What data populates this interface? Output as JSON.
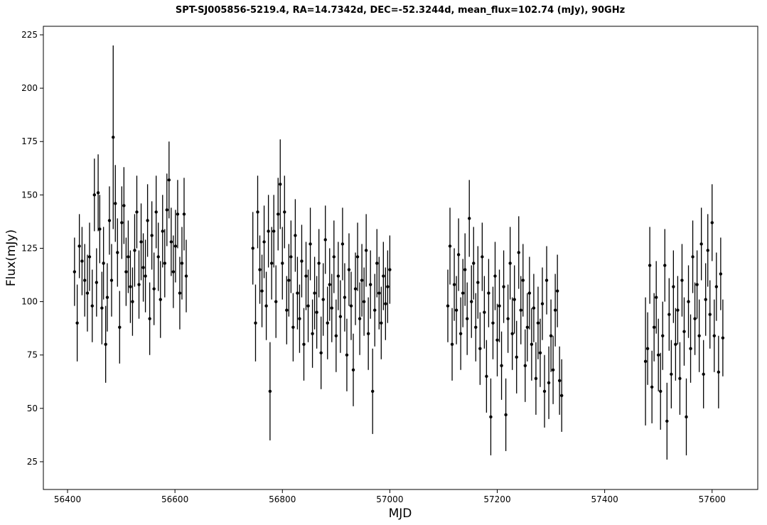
{
  "chart_data": {
    "type": "scatter",
    "title": "SPT-SJ005856-5219.4, RA=14.7342d, DEC=-52.3244d, mean_flux=102.74 (mJy), 90GHz",
    "xlabel": "MJD",
    "ylabel": "Flux(mJy)",
    "xlim": [
      56355,
      57685
    ],
    "ylim": [
      12,
      229
    ],
    "xticks": [
      "56400",
      "56600",
      "56800",
      "57000",
      "57200",
      "57400",
      "57600"
    ],
    "yticks": [
      "25",
      "50",
      "75",
      "100",
      "125",
      "150",
      "175",
      "200",
      "225"
    ],
    "grid": false,
    "error_bars": true,
    "marker_color": "#000000",
    "points": [
      {
        "x": 56413,
        "y": 114,
        "err": 16
      },
      {
        "x": 56418,
        "y": 90,
        "err": 18
      },
      {
        "x": 56422,
        "y": 126,
        "err": 15
      },
      {
        "x": 56427,
        "y": 119,
        "err": 16
      },
      {
        "x": 56432,
        "y": 110,
        "err": 17
      },
      {
        "x": 56437,
        "y": 104,
        "err": 18
      },
      {
        "x": 56441,
        "y": 121,
        "err": 16
      },
      {
        "x": 56446,
        "y": 98,
        "err": 17
      },
      {
        "x": 56450,
        "y": 150,
        "err": 17
      },
      {
        "x": 56454,
        "y": 109,
        "err": 16
      },
      {
        "x": 56457,
        "y": 151,
        "err": 18
      },
      {
        "x": 56460,
        "y": 134,
        "err": 16
      },
      {
        "x": 56464,
        "y": 97,
        "err": 17
      },
      {
        "x": 56467,
        "y": 118,
        "err": 17
      },
      {
        "x": 56471,
        "y": 80,
        "err": 18
      },
      {
        "x": 56474,
        "y": 102,
        "err": 16
      },
      {
        "x": 56478,
        "y": 138,
        "err": 16
      },
      {
        "x": 56482,
        "y": 110,
        "err": 17
      },
      {
        "x": 56485,
        "y": 177,
        "err": 43
      },
      {
        "x": 56489,
        "y": 146,
        "err": 18
      },
      {
        "x": 56493,
        "y": 123,
        "err": 16
      },
      {
        "x": 56497,
        "y": 88,
        "err": 17
      },
      {
        "x": 56501,
        "y": 137,
        "err": 17
      },
      {
        "x": 56505,
        "y": 145,
        "err": 18
      },
      {
        "x": 56509,
        "y": 114,
        "err": 16
      },
      {
        "x": 56513,
        "y": 121,
        "err": 17
      },
      {
        "x": 56517,
        "y": 107,
        "err": 17
      },
      {
        "x": 56521,
        "y": 100,
        "err": 16
      },
      {
        "x": 56525,
        "y": 124,
        "err": 17
      },
      {
        "x": 56529,
        "y": 142,
        "err": 17
      },
      {
        "x": 56533,
        "y": 108,
        "err": 16
      },
      {
        "x": 56537,
        "y": 128,
        "err": 18
      },
      {
        "x": 56541,
        "y": 116,
        "err": 16
      },
      {
        "x": 56545,
        "y": 112,
        "err": 17
      },
      {
        "x": 56549,
        "y": 138,
        "err": 17
      },
      {
        "x": 56553,
        "y": 92,
        "err": 17
      },
      {
        "x": 56557,
        "y": 131,
        "err": 16
      },
      {
        "x": 56561,
        "y": 106,
        "err": 17
      },
      {
        "x": 56565,
        "y": 142,
        "err": 17
      },
      {
        "x": 56569,
        "y": 121,
        "err": 16
      },
      {
        "x": 56573,
        "y": 101,
        "err": 18
      },
      {
        "x": 56577,
        "y": 133,
        "err": 17
      },
      {
        "x": 56581,
        "y": 118,
        "err": 16
      },
      {
        "x": 56585,
        "y": 143,
        "err": 17
      },
      {
        "x": 56589,
        "y": 157,
        "err": 18
      },
      {
        "x": 56593,
        "y": 128,
        "err": 16
      },
      {
        "x": 56597,
        "y": 114,
        "err": 17
      },
      {
        "x": 56601,
        "y": 126,
        "err": 17
      },
      {
        "x": 56605,
        "y": 141,
        "err": 16
      },
      {
        "x": 56609,
        "y": 104,
        "err": 17
      },
      {
        "x": 56613,
        "y": 118,
        "err": 17
      },
      {
        "x": 56617,
        "y": 141,
        "err": 17
      },
      {
        "x": 56621,
        "y": 112,
        "err": 17
      },
      {
        "x": 56745,
        "y": 125,
        "err": 17
      },
      {
        "x": 56750,
        "y": 90,
        "err": 18
      },
      {
        "x": 56754,
        "y": 142,
        "err": 17
      },
      {
        "x": 56758,
        "y": 115,
        "err": 16
      },
      {
        "x": 56762,
        "y": 105,
        "err": 17
      },
      {
        "x": 56766,
        "y": 128,
        "err": 17
      },
      {
        "x": 56770,
        "y": 98,
        "err": 16
      },
      {
        "x": 56774,
        "y": 133,
        "err": 17
      },
      {
        "x": 56777,
        "y": 58,
        "err": 23
      },
      {
        "x": 56780,
        "y": 118,
        "err": 17
      },
      {
        "x": 56784,
        "y": 133,
        "err": 17
      },
      {
        "x": 56788,
        "y": 100,
        "err": 17
      },
      {
        "x": 56792,
        "y": 141,
        "err": 17
      },
      {
        "x": 56796,
        "y": 155,
        "err": 21
      },
      {
        "x": 56800,
        "y": 118,
        "err": 17
      },
      {
        "x": 56804,
        "y": 142,
        "err": 17
      },
      {
        "x": 56808,
        "y": 96,
        "err": 16
      },
      {
        "x": 56812,
        "y": 110,
        "err": 17
      },
      {
        "x": 56816,
        "y": 121,
        "err": 17
      },
      {
        "x": 56820,
        "y": 88,
        "err": 16
      },
      {
        "x": 56824,
        "y": 131,
        "err": 17
      },
      {
        "x": 56828,
        "y": 104,
        "err": 17
      },
      {
        "x": 56832,
        "y": 92,
        "err": 16
      },
      {
        "x": 56836,
        "y": 119,
        "err": 17
      },
      {
        "x": 56840,
        "y": 80,
        "err": 17
      },
      {
        "x": 56844,
        "y": 112,
        "err": 16
      },
      {
        "x": 56848,
        "y": 98,
        "err": 17
      },
      {
        "x": 56852,
        "y": 127,
        "err": 17
      },
      {
        "x": 56856,
        "y": 85,
        "err": 16
      },
      {
        "x": 56860,
        "y": 104,
        "err": 17
      },
      {
        "x": 56864,
        "y": 95,
        "err": 17
      },
      {
        "x": 56868,
        "y": 118,
        "err": 16
      },
      {
        "x": 56872,
        "y": 76,
        "err": 17
      },
      {
        "x": 56876,
        "y": 101,
        "err": 17
      },
      {
        "x": 56880,
        "y": 129,
        "err": 16
      },
      {
        "x": 56884,
        "y": 90,
        "err": 17
      },
      {
        "x": 56888,
        "y": 108,
        "err": 17
      },
      {
        "x": 56892,
        "y": 97,
        "err": 16
      },
      {
        "x": 56896,
        "y": 121,
        "err": 17
      },
      {
        "x": 56900,
        "y": 84,
        "err": 17
      },
      {
        "x": 56904,
        "y": 112,
        "err": 16
      },
      {
        "x": 56908,
        "y": 93,
        "err": 17
      },
      {
        "x": 56912,
        "y": 127,
        "err": 17
      },
      {
        "x": 56916,
        "y": 102,
        "err": 16
      },
      {
        "x": 56920,
        "y": 75,
        "err": 17
      },
      {
        "x": 56924,
        "y": 115,
        "err": 17
      },
      {
        "x": 56928,
        "y": 98,
        "err": 16
      },
      {
        "x": 56932,
        "y": 68,
        "err": 17
      },
      {
        "x": 56936,
        "y": 106,
        "err": 17
      },
      {
        "x": 56940,
        "y": 121,
        "err": 16
      },
      {
        "x": 56944,
        "y": 92,
        "err": 17
      },
      {
        "x": 56948,
        "y": 110,
        "err": 17
      },
      {
        "x": 56952,
        "y": 100,
        "err": 16
      },
      {
        "x": 56956,
        "y": 124,
        "err": 17
      },
      {
        "x": 56960,
        "y": 85,
        "err": 17
      },
      {
        "x": 56964,
        "y": 108,
        "err": 16
      },
      {
        "x": 56968,
        "y": 58,
        "err": 20
      },
      {
        "x": 56972,
        "y": 96,
        "err": 17
      },
      {
        "x": 56976,
        "y": 118,
        "err": 16
      },
      {
        "x": 56980,
        "y": 104,
        "err": 17
      },
      {
        "x": 56984,
        "y": 90,
        "err": 17
      },
      {
        "x": 56988,
        "y": 112,
        "err": 16
      },
      {
        "x": 56992,
        "y": 99,
        "err": 17
      },
      {
        "x": 56996,
        "y": 107,
        "err": 17
      },
      {
        "x": 57000,
        "y": 115,
        "err": 16
      },
      {
        "x": 57108,
        "y": 98,
        "err": 17
      },
      {
        "x": 57112,
        "y": 126,
        "err": 18
      },
      {
        "x": 57116,
        "y": 80,
        "err": 17
      },
      {
        "x": 57120,
        "y": 108,
        "err": 17
      },
      {
        "x": 57124,
        "y": 96,
        "err": 16
      },
      {
        "x": 57128,
        "y": 122,
        "err": 17
      },
      {
        "x": 57132,
        "y": 85,
        "err": 17
      },
      {
        "x": 57136,
        "y": 104,
        "err": 16
      },
      {
        "x": 57140,
        "y": 115,
        "err": 17
      },
      {
        "x": 57144,
        "y": 92,
        "err": 17
      },
      {
        "x": 57148,
        "y": 139,
        "err": 18
      },
      {
        "x": 57152,
        "y": 100,
        "err": 17
      },
      {
        "x": 57156,
        "y": 118,
        "err": 17
      },
      {
        "x": 57160,
        "y": 88,
        "err": 16
      },
      {
        "x": 57164,
        "y": 109,
        "err": 17
      },
      {
        "x": 57168,
        "y": 78,
        "err": 17
      },
      {
        "x": 57172,
        "y": 121,
        "err": 16
      },
      {
        "x": 57176,
        "y": 95,
        "err": 17
      },
      {
        "x": 57180,
        "y": 65,
        "err": 17
      },
      {
        "x": 57184,
        "y": 104,
        "err": 16
      },
      {
        "x": 57188,
        "y": 46,
        "err": 18
      },
      {
        "x": 57192,
        "y": 90,
        "err": 17
      },
      {
        "x": 57196,
        "y": 112,
        "err": 16
      },
      {
        "x": 57200,
        "y": 82,
        "err": 17
      },
      {
        "x": 57204,
        "y": 98,
        "err": 17
      },
      {
        "x": 57208,
        "y": 70,
        "err": 16
      },
      {
        "x": 57212,
        "y": 107,
        "err": 17
      },
      {
        "x": 57216,
        "y": 47,
        "err": 17
      },
      {
        "x": 57220,
        "y": 92,
        "err": 16
      },
      {
        "x": 57224,
        "y": 118,
        "err": 17
      },
      {
        "x": 57228,
        "y": 85,
        "err": 17
      },
      {
        "x": 57232,
        "y": 101,
        "err": 16
      },
      {
        "x": 57236,
        "y": 74,
        "err": 17
      },
      {
        "x": 57240,
        "y": 123,
        "err": 17
      },
      {
        "x": 57244,
        "y": 96,
        "err": 16
      },
      {
        "x": 57248,
        "y": 110,
        "err": 17
      },
      {
        "x": 57252,
        "y": 70,
        "err": 17
      },
      {
        "x": 57256,
        "y": 88,
        "err": 16
      },
      {
        "x": 57260,
        "y": 104,
        "err": 17
      },
      {
        "x": 57264,
        "y": 80,
        "err": 17
      },
      {
        "x": 57268,
        "y": 97,
        "err": 16
      },
      {
        "x": 57272,
        "y": 64,
        "err": 17
      },
      {
        "x": 57276,
        "y": 90,
        "err": 17
      },
      {
        "x": 57280,
        "y": 76,
        "err": 16
      },
      {
        "x": 57284,
        "y": 99,
        "err": 17
      },
      {
        "x": 57288,
        "y": 58,
        "err": 17
      },
      {
        "x": 57292,
        "y": 110,
        "err": 16
      },
      {
        "x": 57296,
        "y": 62,
        "err": 17
      },
      {
        "x": 57300,
        "y": 84,
        "err": 17
      },
      {
        "x": 57304,
        "y": 68,
        "err": 16
      },
      {
        "x": 57308,
        "y": 96,
        "err": 17
      },
      {
        "x": 57312,
        "y": 105,
        "err": 17
      },
      {
        "x": 57316,
        "y": 63,
        "err": 16
      },
      {
        "x": 57320,
        "y": 56,
        "err": 17
      },
      {
        "x": 57476,
        "y": 72,
        "err": 30
      },
      {
        "x": 57480,
        "y": 78,
        "err": 17
      },
      {
        "x": 57484,
        "y": 117,
        "err": 18
      },
      {
        "x": 57488,
        "y": 60,
        "err": 17
      },
      {
        "x": 57492,
        "y": 88,
        "err": 16
      },
      {
        "x": 57496,
        "y": 102,
        "err": 17
      },
      {
        "x": 57500,
        "y": 75,
        "err": 17
      },
      {
        "x": 57504,
        "y": 58,
        "err": 18
      },
      {
        "x": 57508,
        "y": 84,
        "err": 16
      },
      {
        "x": 57512,
        "y": 117,
        "err": 17
      },
      {
        "x": 57516,
        "y": 44,
        "err": 18
      },
      {
        "x": 57520,
        "y": 94,
        "err": 17
      },
      {
        "x": 57524,
        "y": 66,
        "err": 16
      },
      {
        "x": 57528,
        "y": 107,
        "err": 17
      },
      {
        "x": 57532,
        "y": 80,
        "err": 17
      },
      {
        "x": 57536,
        "y": 96,
        "err": 16
      },
      {
        "x": 57540,
        "y": 64,
        "err": 17
      },
      {
        "x": 57544,
        "y": 110,
        "err": 17
      },
      {
        "x": 57548,
        "y": 86,
        "err": 16
      },
      {
        "x": 57552,
        "y": 46,
        "err": 18
      },
      {
        "x": 57556,
        "y": 100,
        "err": 17
      },
      {
        "x": 57560,
        "y": 78,
        "err": 16
      },
      {
        "x": 57564,
        "y": 121,
        "err": 17
      },
      {
        "x": 57568,
        "y": 92,
        "err": 17
      },
      {
        "x": 57572,
        "y": 108,
        "err": 16
      },
      {
        "x": 57576,
        "y": 84,
        "err": 17
      },
      {
        "x": 57580,
        "y": 127,
        "err": 17
      },
      {
        "x": 57584,
        "y": 66,
        "err": 16
      },
      {
        "x": 57588,
        "y": 101,
        "err": 17
      },
      {
        "x": 57592,
        "y": 124,
        "err": 17
      },
      {
        "x": 57596,
        "y": 94,
        "err": 16
      },
      {
        "x": 57600,
        "y": 137,
        "err": 18
      },
      {
        "x": 57604,
        "y": 84,
        "err": 17
      },
      {
        "x": 57608,
        "y": 107,
        "err": 16
      },
      {
        "x": 57612,
        "y": 67,
        "err": 17
      },
      {
        "x": 57616,
        "y": 113,
        "err": 17
      },
      {
        "x": 57620,
        "y": 83,
        "err": 18
      }
    ]
  }
}
